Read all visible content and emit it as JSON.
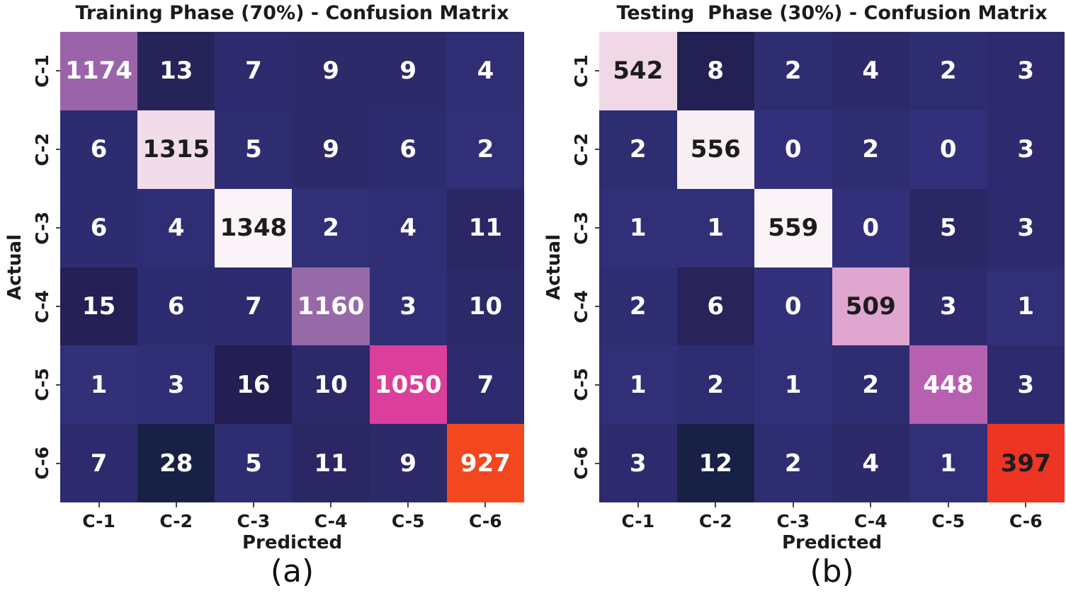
{
  "colors": {
    "background": "#ffffff",
    "label_text": "#1b1b1b",
    "tick_mark": "#444444",
    "annot_light": "#ffffff",
    "annot_dark": "#1c1c1c"
  },
  "chart_data": [
    {
      "type": "heatmap",
      "title": "Training Phase (70%) - Confusion Matrix",
      "subfig_label": "(a)",
      "xlabel": "Predicted",
      "ylabel": "Actual",
      "x_labels": [
        "C-1",
        "C-2",
        "C-3",
        "C-4",
        "C-5",
        "C-6"
      ],
      "y_labels": [
        "C-1",
        "C-2",
        "C-3",
        "C-4",
        "C-5",
        "C-6"
      ],
      "values": [
        [
          1174,
          13,
          7,
          9,
          9,
          4
        ],
        [
          6,
          1315,
          5,
          9,
          6,
          2
        ],
        [
          6,
          4,
          1348,
          2,
          4,
          11
        ],
        [
          15,
          6,
          7,
          1160,
          3,
          10
        ],
        [
          1,
          3,
          16,
          10,
          1050,
          7
        ],
        [
          7,
          28,
          5,
          11,
          9,
          927
        ]
      ],
      "cell_colors": [
        [
          "#9b64a8",
          "#262358",
          "#2d2b6e",
          "#2c2a69",
          "#2c2a69",
          "#2f2d73"
        ],
        [
          "#2e2c70",
          "#f3dcea",
          "#2f2d72",
          "#2c2a69",
          "#2e2c70",
          "#312f77"
        ],
        [
          "#2e2c70",
          "#2f2d73",
          "#faf3f8",
          "#312f77",
          "#2f2d73",
          "#2a2764"
        ],
        [
          "#242055",
          "#2e2c70",
          "#2d2b6e",
          "#9769a7",
          "#302e75",
          "#2b2967"
        ],
        [
          "#323079",
          "#302e75",
          "#231f52",
          "#2b2967",
          "#db3f9b",
          "#2d2b6e"
        ],
        [
          "#2d2b6e",
          "#182145",
          "#2f2d72",
          "#2a2764",
          "#2c2a69",
          "#f2471f"
        ]
      ],
      "text_colors": [
        [
          "#ffffff",
          "#ffffff",
          "#ffffff",
          "#ffffff",
          "#ffffff",
          "#ffffff"
        ],
        [
          "#ffffff",
          "#1c1c1c",
          "#ffffff",
          "#ffffff",
          "#ffffff",
          "#ffffff"
        ],
        [
          "#ffffff",
          "#ffffff",
          "#1c1c1c",
          "#ffffff",
          "#ffffff",
          "#ffffff"
        ],
        [
          "#ffffff",
          "#ffffff",
          "#ffffff",
          "#ffffff",
          "#ffffff",
          "#ffffff"
        ],
        [
          "#ffffff",
          "#ffffff",
          "#ffffff",
          "#ffffff",
          "#ffffff",
          "#ffffff"
        ],
        [
          "#ffffff",
          "#ffffff",
          "#ffffff",
          "#ffffff",
          "#ffffff",
          "#ffffff"
        ]
      ]
    },
    {
      "type": "heatmap",
      "title": "Testing  Phase (30%) - Confusion Matrix",
      "subfig_label": "(b)",
      "xlabel": "Predicted",
      "ylabel": "Actual",
      "x_labels": [
        "C-1",
        "C-2",
        "C-3",
        "C-4",
        "C-5",
        "C-6"
      ],
      "y_labels": [
        "C-1",
        "C-2",
        "C-3",
        "C-4",
        "C-5",
        "C-6"
      ],
      "values": [
        [
          542,
          8,
          2,
          4,
          2,
          3
        ],
        [
          2,
          556,
          0,
          2,
          0,
          3
        ],
        [
          1,
          1,
          559,
          0,
          5,
          3
        ],
        [
          2,
          6,
          0,
          509,
          3,
          1
        ],
        [
          1,
          2,
          1,
          2,
          448,
          3
        ],
        [
          3,
          12,
          2,
          4,
          1,
          397
        ]
      ],
      "cell_colors": [
        [
          "#f0d8e6",
          "#232153",
          "#2f2d72",
          "#2c2a68",
          "#2f2d72",
          "#2d2b6e"
        ],
        [
          "#2f2d72",
          "#f8eff4",
          "#33307b",
          "#2f2d72",
          "#33307b",
          "#2d2b6e"
        ],
        [
          "#312f77",
          "#312f77",
          "#faf4f8",
          "#33307b",
          "#2a2765",
          "#2d2b6e"
        ],
        [
          "#2f2d72",
          "#282459",
          "#33307b",
          "#dfa6d0",
          "#2d2b6e",
          "#312f77"
        ],
        [
          "#312f77",
          "#2f2d72",
          "#312f77",
          "#2f2d72",
          "#b860b0",
          "#2d2b6e"
        ],
        [
          "#2d2b6e",
          "#182145",
          "#2f2d72",
          "#2c2a68",
          "#312f77",
          "#ee3423"
        ]
      ],
      "text_colors": [
        [
          "#1c1c1c",
          "#ffffff",
          "#ffffff",
          "#ffffff",
          "#ffffff",
          "#ffffff"
        ],
        [
          "#ffffff",
          "#1c1c1c",
          "#ffffff",
          "#ffffff",
          "#ffffff",
          "#ffffff"
        ],
        [
          "#ffffff",
          "#ffffff",
          "#1c1c1c",
          "#ffffff",
          "#ffffff",
          "#ffffff"
        ],
        [
          "#ffffff",
          "#ffffff",
          "#ffffff",
          "#1c1c1c",
          "#ffffff",
          "#ffffff"
        ],
        [
          "#ffffff",
          "#ffffff",
          "#ffffff",
          "#ffffff",
          "#ffffff",
          "#ffffff"
        ],
        [
          "#ffffff",
          "#ffffff",
          "#ffffff",
          "#ffffff",
          "#ffffff",
          "#1c1c1c"
        ]
      ]
    }
  ]
}
